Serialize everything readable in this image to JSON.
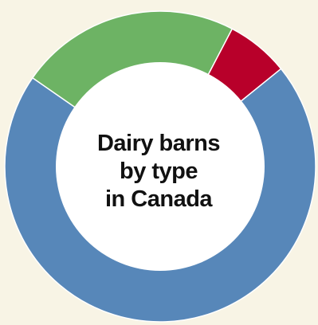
{
  "chart_data": {
    "type": "pie",
    "title_lines": [
      "Dairy barns",
      "by type",
      "in Canada"
    ],
    "slices": [
      {
        "value": 70.5,
        "color": "#5787b9"
      },
      {
        "value": 23.0,
        "color": "#6db364"
      },
      {
        "value": 6.5,
        "color": "#b8002a"
      }
    ],
    "start_angle_deg": 39,
    "hole_color": "#ffffff",
    "separator_color": "#ffffff"
  }
}
